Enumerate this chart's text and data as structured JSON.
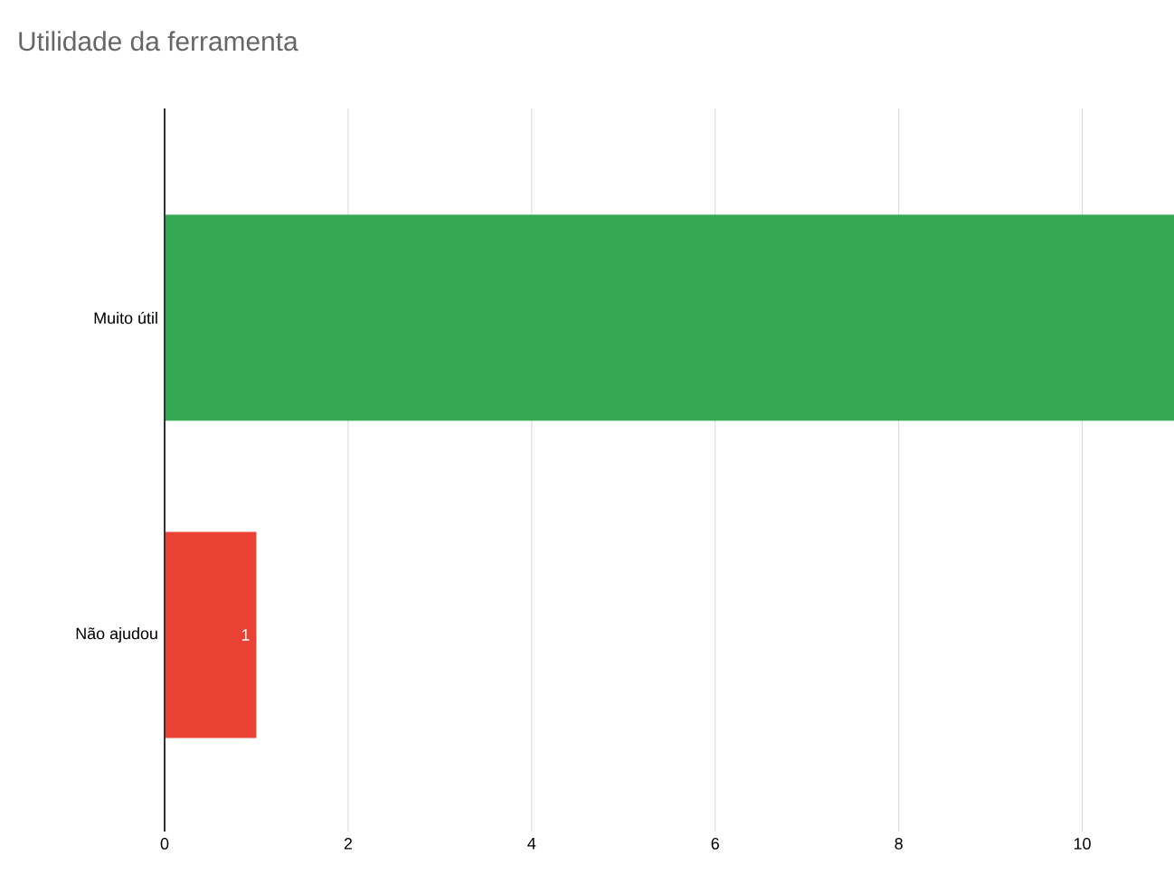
{
  "chart_data": {
    "type": "bar",
    "orientation": "horizontal",
    "title": "Utilidade da ferramenta",
    "categories": [
      "Muito útil",
      "Não ajudou"
    ],
    "values": [
      11,
      1
    ],
    "colors": [
      "#34a853",
      "#ea4335"
    ],
    "value_labels": [
      null,
      "1"
    ],
    "xlim": [
      0,
      11
    ],
    "xticks": [
      0,
      2,
      4,
      6,
      8,
      10
    ],
    "grid": "x"
  }
}
